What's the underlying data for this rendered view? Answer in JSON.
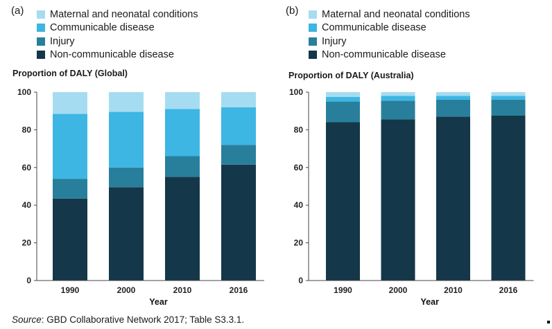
{
  "colors": {
    "maternal": "#a6dcf1",
    "communicable": "#3db6e3",
    "injury": "#287f9c",
    "noncommunicable": "#143749"
  },
  "source": {
    "prefix": "Source",
    "text": ": GBD Collaborative Network 2017; Table S3.3.1."
  },
  "chart_data": [
    {
      "type": "bar",
      "stacked": true,
      "panel": "(a)",
      "ylabel": "Proportion of DALY (Global)",
      "xlabel": "Year",
      "ylim": [
        0,
        100
      ],
      "yticks": [
        0,
        20,
        40,
        60,
        80,
        100
      ],
      "legend_placement": "top-left",
      "categories": [
        "1990",
        "2000",
        "2010",
        "2016"
      ],
      "series": [
        {
          "name": "Non-communicable disease",
          "color_key": "noncommunicable",
          "values": [
            43.5,
            49.5,
            55,
            61.5
          ]
        },
        {
          "name": "Injury",
          "color_key": "injury",
          "values": [
            10.5,
            10.5,
            11,
            10.5
          ]
        },
        {
          "name": "Communicable disease",
          "color_key": "communicable",
          "values": [
            34.5,
            29.5,
            25,
            20
          ]
        },
        {
          "name": "Maternal and neonatal conditions",
          "color_key": "maternal",
          "values": [
            11.5,
            10.5,
            9,
            8
          ]
        }
      ]
    },
    {
      "type": "bar",
      "stacked": true,
      "panel": "(b)",
      "ylabel": "Proportion of DALY (Australia)",
      "xlabel": "Year",
      "ylim": [
        0,
        100
      ],
      "yticks": [
        0,
        20,
        40,
        60,
        80,
        100
      ],
      "legend_placement": "top-left",
      "categories": [
        "1990",
        "2000",
        "2010",
        "2016"
      ],
      "series": [
        {
          "name": "Non-communicable disease",
          "color_key": "noncommunicable",
          "values": [
            84,
            85.5,
            87,
            87.5
          ]
        },
        {
          "name": "Injury",
          "color_key": "injury",
          "values": [
            11,
            10,
            9,
            8.5
          ]
        },
        {
          "name": "Communicable disease",
          "color_key": "communicable",
          "values": [
            2.5,
            2.5,
            2,
            2
          ]
        },
        {
          "name": "Maternal and neonatal conditions",
          "color_key": "maternal",
          "values": [
            2.5,
            2,
            2,
            2
          ]
        }
      ]
    }
  ]
}
